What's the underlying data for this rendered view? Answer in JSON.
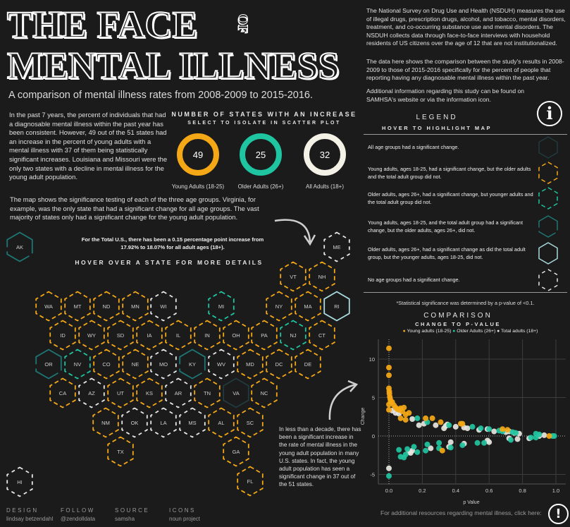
{
  "header": {
    "title_line1": "THE FACE",
    "title_of": "OF",
    "title_line2": "MENTAL ILLNESS",
    "subtitle": "A comparison of mental illness rates from 2008-2009 to 2015-2016."
  },
  "about": {
    "p1": "The National Survey on Drug Use and Health (NSDUH) measures the use of illegal drugs, prescription drugs, alcohol, and tobacco, mental disorders, treatment, and co-occurring substance use and mental disorders. The NSDUH collects data through face-to-face interviews with household residents of US citizens over the age of 12 that are not institutionalized.",
    "p2": "The data here shows the comparison between the study's results in 2008-2009 to those of 2015-2016 specifically for the percent of people that reporting having any diagnosable mental illness within the past year.",
    "p3": "Additional information regarding this study can be found on SAMHSA's website or via the information icon."
  },
  "intro": {
    "p1": "In the past 7 years, the percent of individuals that had a diagnosable mental illness within the past year has been consistent. However, 49 out of the 51 states had an increase in the percent of young adults with a mental illness with 37 of them being statistically significant increases. Louisiana and Missouri were the only two states with a decline in mental illness for the young adult population.",
    "p2": "The map shows the significance testing of each of the three age groups. Virginia, for example, was the only state that had a significant change for all age groups. The vast majority of states only had a significant change for the young adult population.",
    "total_note": "For the Total U.S., there has been a 0.15 percentage point increase from 17.92% to 18.07% for all adult ages (18+).",
    "bottom_note": "In less than a decade, there has been a significant increase in the rate of mental illness in the young adult population in many U.S. states.  In fact, the young adult population has seen a significant change in 37 out of the 51 states."
  },
  "increase": {
    "title": "NUMBER OF STATES WITH AN INCREASE",
    "subtitle": "SELECT TO ISOLATE IN SCATTER PLOT",
    "donuts": [
      {
        "value": "49",
        "label": "Young Adults (18-25)",
        "color": "#f5a816"
      },
      {
        "value": "25",
        "label": "Older Adults (26+)",
        "color": "#1fc4a0"
      },
      {
        "value": "32",
        "label": "All Adults (18+)",
        "color": "#f4f1e6"
      }
    ]
  },
  "map": {
    "hint": "HOVER OVER A STATE FOR MORE DETAILS",
    "states": [
      {
        "abbr": "AK",
        "group": "young_total"
      },
      {
        "abbr": "ME",
        "group": "none"
      },
      {
        "abbr": "VT",
        "group": "young"
      },
      {
        "abbr": "NH",
        "group": "young"
      },
      {
        "abbr": "WA",
        "group": "young"
      },
      {
        "abbr": "MT",
        "group": "young"
      },
      {
        "abbr": "ND",
        "group": "young"
      },
      {
        "abbr": "MN",
        "group": "young"
      },
      {
        "abbr": "WI",
        "group": "none"
      },
      {
        "abbr": "MI",
        "group": "older"
      },
      {
        "abbr": "NY",
        "group": "young"
      },
      {
        "abbr": "MA",
        "group": "young"
      },
      {
        "abbr": "RI",
        "group": "older_total"
      },
      {
        "abbr": "ID",
        "group": "young"
      },
      {
        "abbr": "WY",
        "group": "young"
      },
      {
        "abbr": "SD",
        "group": "young"
      },
      {
        "abbr": "IA",
        "group": "young"
      },
      {
        "abbr": "IL",
        "group": "young"
      },
      {
        "abbr": "IN",
        "group": "young"
      },
      {
        "abbr": "OH",
        "group": "young"
      },
      {
        "abbr": "PA",
        "group": "young"
      },
      {
        "abbr": "NJ",
        "group": "older"
      },
      {
        "abbr": "CT",
        "group": "young"
      },
      {
        "abbr": "OR",
        "group": "young_total"
      },
      {
        "abbr": "NV",
        "group": "older"
      },
      {
        "abbr": "CO",
        "group": "young"
      },
      {
        "abbr": "NE",
        "group": "young"
      },
      {
        "abbr": "MO",
        "group": "none"
      },
      {
        "abbr": "KY",
        "group": "young_total"
      },
      {
        "abbr": "WV",
        "group": "none"
      },
      {
        "abbr": "MD",
        "group": "young"
      },
      {
        "abbr": "DC",
        "group": "young"
      },
      {
        "abbr": "DE",
        "group": "young"
      },
      {
        "abbr": "CA",
        "group": "young"
      },
      {
        "abbr": "AZ",
        "group": "none"
      },
      {
        "abbr": "UT",
        "group": "young"
      },
      {
        "abbr": "KS",
        "group": "young"
      },
      {
        "abbr": "AR",
        "group": "none"
      },
      {
        "abbr": "TN",
        "group": "young"
      },
      {
        "abbr": "VA",
        "group": "all"
      },
      {
        "abbr": "NC",
        "group": "young"
      },
      {
        "abbr": "NM",
        "group": "young"
      },
      {
        "abbr": "OK",
        "group": "none"
      },
      {
        "abbr": "LA",
        "group": "none"
      },
      {
        "abbr": "MS",
        "group": "none"
      },
      {
        "abbr": "AL",
        "group": "young"
      },
      {
        "abbr": "SC",
        "group": "young"
      },
      {
        "abbr": "TX",
        "group": "young"
      },
      {
        "abbr": "GA",
        "group": "young"
      },
      {
        "abbr": "FL",
        "group": "young"
      },
      {
        "abbr": "HI",
        "group": "none"
      }
    ]
  },
  "legend": {
    "title": "LEGEND",
    "subtitle": "HOVER TO HIGHLIGHT MAP",
    "info_icon": "info-icon",
    "items": [
      {
        "group": "all",
        "text": "All age groups had a significant change.",
        "color": "#213a3d"
      },
      {
        "group": "young",
        "text": "Young adults, ages 18-25, had a significant change, but the older adults and the total adult group did not.",
        "color": "#f5a816"
      },
      {
        "group": "older",
        "text": "Older adults, ages 26+, had a significant change, but younger adults and the total adult group did not.",
        "color": "#1fc4a0"
      },
      {
        "group": "young_total",
        "text": "Young adults, ages 18-25, and the total adult group had a significant change, but the older adults, ages 26+, did not.",
        "color": "#1e7674"
      },
      {
        "group": "older_total",
        "text": "Older adults, ages 26+, had a significant change as did the total adult group, but the younger adults, ages 18-25, did not.",
        "color": "#a8dadd"
      },
      {
        "group": "none",
        "text": "No age groups had a significant change.",
        "color": "#e8e8e8"
      }
    ],
    "footnote": "*Statistical significance was determined by a p-value of <0.1."
  },
  "chart_data": {
    "type": "scatter",
    "title": "COMPARISON",
    "subtitle": "CHANGE TO P-VALUE",
    "xlabel": "p Value",
    "ylabel": "Change",
    "xlim": [
      -0.07,
      1.05
    ],
    "ylim": [
      -6.3,
      12.5
    ],
    "xticks": [
      "0.0",
      "0.2",
      "0.4",
      "0.6",
      "0.8",
      "1.0"
    ],
    "yticks": [
      "-5",
      "0",
      "5",
      "10"
    ],
    "grid": true,
    "legend_position": "top",
    "series": [
      {
        "name": "Young adults (18-25)",
        "color": "#f5a816",
        "points": [
          [
            0,
            11.4
          ],
          [
            0,
            8.9
          ],
          [
            0,
            7.9
          ],
          [
            0,
            6.2
          ],
          [
            0.002,
            5.8
          ],
          [
            0.003,
            5.5
          ],
          [
            0.005,
            5.1
          ],
          [
            0.008,
            4.8
          ],
          [
            0.01,
            4.5
          ],
          [
            0,
            4.1
          ],
          [
            0.02,
            4.4
          ],
          [
            0.03,
            4.0
          ],
          [
            0.04,
            3.7
          ],
          [
            0.05,
            3.5
          ],
          [
            0.06,
            3.4
          ],
          [
            0.07,
            3.6
          ],
          [
            0.08,
            3.2
          ],
          [
            0.09,
            3.7
          ],
          [
            0.1,
            2.8
          ],
          [
            0.12,
            3.0
          ],
          [
            0.07,
            2.3
          ],
          [
            0.1,
            2.1
          ],
          [
            0.22,
            2.3
          ],
          [
            0.26,
            2.3
          ],
          [
            0.31,
            1.8
          ],
          [
            0.43,
            1.6
          ],
          [
            0.44,
            1.6
          ],
          [
            0.68,
            0.9
          ],
          [
            0.71,
            0.8
          ],
          [
            0.96,
            0.0
          ],
          [
            0.32,
            -1.9
          ],
          [
            0,
            3.4
          ]
        ]
      },
      {
        "name": "Older Adults (26+)",
        "color": "#1fc4a0",
        "points": [
          [
            0,
            -5.2
          ],
          [
            0.06,
            -1.8
          ],
          [
            0.07,
            -2.7
          ],
          [
            0.09,
            -2.8
          ],
          [
            0.1,
            -2.4
          ],
          [
            0.11,
            -1.7
          ],
          [
            0.15,
            -1.4
          ],
          [
            0.17,
            -2.1
          ],
          [
            0.22,
            -1.9
          ],
          [
            0.23,
            -1.1
          ],
          [
            0.3,
            -0.9
          ],
          [
            0.3,
            -1.6
          ],
          [
            0.37,
            -1.5
          ],
          [
            0.44,
            -1.2
          ],
          [
            0.53,
            -0.9
          ],
          [
            0.57,
            -0.9
          ],
          [
            0.17,
            2.3
          ],
          [
            0.23,
            1.8
          ],
          [
            0.36,
            1.4
          ],
          [
            0.5,
            1.2
          ],
          [
            0.55,
            1.0
          ],
          [
            0.6,
            0.9
          ],
          [
            0.66,
            0.7
          ],
          [
            0.68,
            0.6
          ],
          [
            0.74,
            0.5
          ],
          [
            0.76,
            0.4
          ],
          [
            0.73,
            -0.5
          ],
          [
            0.85,
            -0.2
          ],
          [
            0.88,
            0.3
          ],
          [
            0.9,
            0.2
          ],
          [
            0.88,
            -0.2
          ],
          [
            0.98,
            0.0
          ],
          [
            0.99,
            0.0
          ]
        ]
      },
      {
        "name": "Total adults (18+)",
        "color": "#e8e6e0",
        "points": [
          [
            0,
            -4.2
          ],
          [
            0.02,
            3.3
          ],
          [
            0.04,
            3.0
          ],
          [
            0.06,
            2.9
          ],
          [
            0.14,
            2.2
          ],
          [
            0.18,
            1.4
          ],
          [
            0.21,
            1.6
          ],
          [
            0.28,
            1.4
          ],
          [
            0.33,
            1.0
          ],
          [
            0.34,
            1.3
          ],
          [
            0.35,
            1.5
          ],
          [
            0.4,
            1.2
          ],
          [
            0.45,
            1.1
          ],
          [
            0.47,
            1.0
          ],
          [
            0.54,
            0.8
          ],
          [
            0.59,
            0.9
          ],
          [
            0.63,
            0.6
          ],
          [
            0.7,
            0.5
          ],
          [
            0.72,
            0.6
          ],
          [
            0.75,
            0.4
          ],
          [
            0.78,
            0.3
          ],
          [
            0.12,
            -2.1
          ],
          [
            0.13,
            -2.2
          ],
          [
            0.14,
            -1.9
          ],
          [
            0.25,
            -1.6
          ],
          [
            0.36,
            -1.4
          ],
          [
            0.37,
            -0.8
          ],
          [
            0.45,
            -1.0
          ],
          [
            0.59,
            -0.6
          ],
          [
            0.6,
            -0.8
          ],
          [
            0.72,
            -0.3
          ],
          [
            0.77,
            -0.4
          ],
          [
            0.84,
            -0.3
          ],
          [
            0.9,
            0.0
          ],
          [
            0.93,
            0.1
          ]
        ]
      }
    ]
  },
  "footer": {
    "credits": [
      {
        "label": "DESIGN",
        "value": "lindsay betzendahl"
      },
      {
        "label": "FOLLOW",
        "value": "@zendolldata"
      },
      {
        "label": "SOURCE",
        "value": "samsha"
      },
      {
        "label": "ICONS",
        "value": "noun project"
      }
    ],
    "resources": "For additional resources regarding mental illness, click here:",
    "resources_icon": "exclamation-icon"
  }
}
